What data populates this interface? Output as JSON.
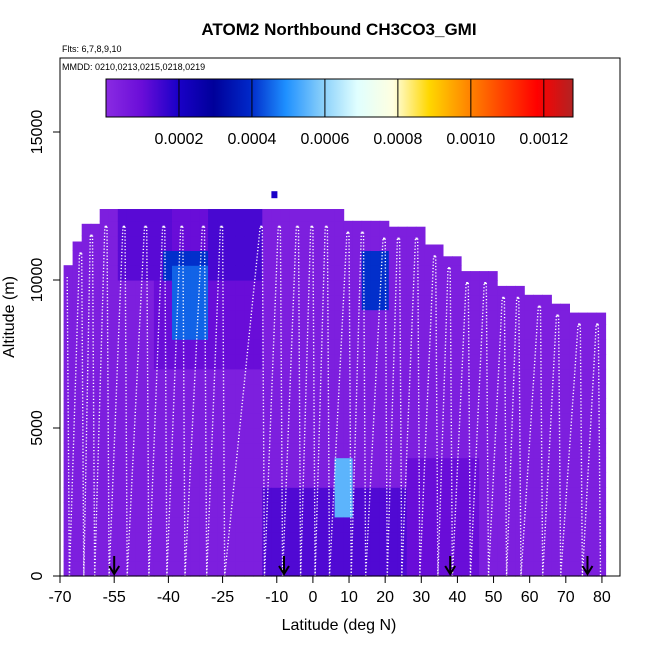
{
  "chart_data": {
    "type": "heatmap",
    "title": "ATOM2 Northbound CH3CO3_GMI",
    "subtitle_flights": "Flts: 6,7,8,9,10",
    "subtitle_dates": "MMDD: 0210,0213,0215,0218,0219",
    "xlabel": "Latitude (deg N)",
    "ylabel": "Altitude (m)",
    "xlim": [
      -70,
      85
    ],
    "ylim": [
      0,
      17500
    ],
    "x_ticks": [
      -70,
      -55,
      -40,
      -25,
      -10,
      0,
      10,
      20,
      30,
      40,
      50,
      60,
      70,
      80
    ],
    "x_tick_labels": [
      "-70",
      "-55",
      "-40",
      "-25",
      "-10",
      "0",
      "10",
      "20",
      "30",
      "40",
      "50",
      "60",
      "70",
      "80"
    ],
    "y_ticks": [
      0,
      5000,
      10000,
      15000
    ],
    "y_tick_labels": [
      "0",
      "5000",
      "10000",
      "15000"
    ],
    "colorbar": {
      "range": [
        0,
        0.00128
      ],
      "tick_values": [
        0.0002,
        0.0004,
        0.0006,
        0.0008,
        0.001,
        0.0012
      ],
      "tick_labels": [
        "0.0002",
        "0.0004",
        "0.0006",
        "0.0008",
        "0.0010",
        "0.0012"
      ],
      "colors": [
        "#8a2be2",
        "#6a0dd8",
        "#1a00c8",
        "#00009a",
        "#0028c8",
        "#1e90ff",
        "#87cefa",
        "#e0ffff",
        "#ffffe0",
        "#ffd700",
        "#ff8c00",
        "#ff4500",
        "#ff0000",
        "#b22222"
      ]
    },
    "arrow_latitudes": [
      -55,
      -8,
      38,
      76
    ],
    "hotspots": [
      {
        "lat_range": [
          -38,
          -28
        ],
        "alt_range": [
          8000,
          10500
        ],
        "value": 0.00045
      },
      {
        "lat_range": [
          -42,
          -30
        ],
        "alt_range": [
          10200,
          11200
        ],
        "value": 0.0004
      },
      {
        "lat_range": [
          14,
          20
        ],
        "alt_range": [
          9000,
          11000
        ],
        "value": 0.0004
      },
      {
        "lat_range": [
          5,
          10
        ],
        "alt_range": [
          1800,
          3900
        ],
        "value": 0.00055
      }
    ],
    "profile_descent_latitudes": [
      -68,
      -64,
      -61,
      -57,
      -52,
      -46,
      -41,
      -36,
      -30,
      -25,
      -14,
      -9,
      -4,
      0,
      4,
      10,
      14,
      20,
      24,
      29,
      34,
      38,
      43,
      48,
      53,
      57,
      63,
      68,
      74,
      79
    ]
  }
}
